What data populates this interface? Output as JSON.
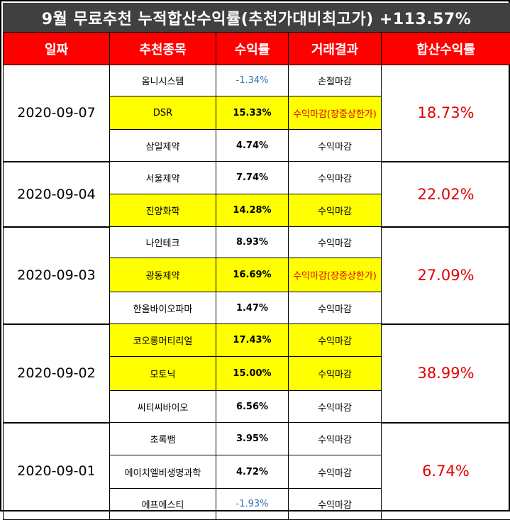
{
  "title": "9월 무료추천 누적합산수익률(추천가대비최고가) +113.57%",
  "headers": [
    "일짜",
    "추천종목",
    "수익률",
    "거래결과",
    "합산수익률"
  ],
  "colors": {
    "header_bg": "#ff0000",
    "title_bg": "#404040",
    "highlight": "#ffff00",
    "positive": "#e00000",
    "negative": "#2e75b6"
  },
  "groups": [
    {
      "date": "2020-09-07",
      "total": "18.73%",
      "rows": [
        {
          "stock": "옴니시스템",
          "return": "-1.34%",
          "result": "손절마감",
          "highlight": false,
          "negative": true,
          "limit_up": false
        },
        {
          "stock": "DSR",
          "return": "15.33%",
          "result": "수익마감(장중상한가)",
          "highlight": true,
          "negative": false,
          "limit_up": true
        },
        {
          "stock": "삼일제약",
          "return": "4.74%",
          "result": "수익마감",
          "highlight": false,
          "negative": false,
          "limit_up": false
        }
      ]
    },
    {
      "date": "2020-09-04",
      "total": "22.02%",
      "rows": [
        {
          "stock": "서울제약",
          "return": "7.74%",
          "result": "수익마감",
          "highlight": false,
          "negative": false,
          "limit_up": false
        },
        {
          "stock": "진양화학",
          "return": "14.28%",
          "result": "수익마감",
          "highlight": true,
          "negative": false,
          "limit_up": false
        }
      ]
    },
    {
      "date": "2020-09-03",
      "total": "27.09%",
      "rows": [
        {
          "stock": "나인테크",
          "return": "8.93%",
          "result": "수익마감",
          "highlight": false,
          "negative": false,
          "limit_up": false
        },
        {
          "stock": "광동제약",
          "return": "16.69%",
          "result": "수익마감(장중상한가)",
          "highlight": true,
          "negative": false,
          "limit_up": true
        },
        {
          "stock": "한올바이오파마",
          "return": "1.47%",
          "result": "수익마감",
          "highlight": false,
          "negative": false,
          "limit_up": false
        }
      ]
    },
    {
      "date": "2020-09-02",
      "total": "38.99%",
      "rows": [
        {
          "stock": "코오롱머티리얼",
          "return": "17.43%",
          "result": "수익마감",
          "highlight": true,
          "negative": false,
          "limit_up": false
        },
        {
          "stock": "모토닉",
          "return": "15.00%",
          "result": "수익마감",
          "highlight": true,
          "negative": false,
          "limit_up": false
        },
        {
          "stock": "씨티씨바이오",
          "return": "6.56%",
          "result": "수익마감",
          "highlight": false,
          "negative": false,
          "limit_up": false
        }
      ]
    },
    {
      "date": "2020-09-01",
      "total": "6.74%",
      "rows": [
        {
          "stock": "초록뱀",
          "return": "3.95%",
          "result": "수익마감",
          "highlight": false,
          "negative": false,
          "limit_up": false
        },
        {
          "stock": "에이치엘비생명과학",
          "return": "4.72%",
          "result": "수익마감",
          "highlight": false,
          "negative": false,
          "limit_up": false
        },
        {
          "stock": "에프에스티",
          "return": "-1.93%",
          "result": "수익마감",
          "highlight": false,
          "negative": true,
          "limit_up": false
        }
      ]
    }
  ]
}
